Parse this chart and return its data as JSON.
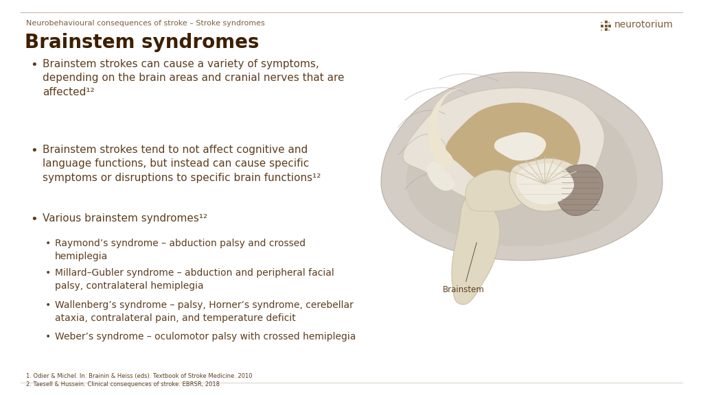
{
  "bg_color": "#ffffff",
  "subtitle": "Neurobehavioural consequences of stroke – Stroke syndromes",
  "title": "Brainstem syndromes",
  "subtitle_color": "#7b5c3a",
  "title_color": "#3d1f00",
  "text_color": "#5c3d1e",
  "bullet_points": [
    {
      "text": "Brainstem strokes can cause a variety of symptoms,\ndepending on the brain areas and cranial nerves that are\naffected¹²",
      "level": 1
    },
    {
      "text": "Brainstem strokes tend to not affect cognitive and\nlanguage functions, but instead can cause specific\nsymptoms or disruptions to specific brain functions¹²",
      "level": 1
    },
    {
      "text": "Various brainstem syndromes¹²",
      "level": 1
    },
    {
      "text": "Raymond’s syndrome – abduction palsy and crossed\nhemiplegia",
      "level": 2
    },
    {
      "text": "Millard–Gubler syndrome – abduction and peripheral facial\npalsy, contralateral hemiplegia",
      "level": 2
    },
    {
      "text": "Wallenberg’s syndrome – palsy, Horner’s syndrome, cerebellar\nataxia, contralateral pain, and temperature deficit",
      "level": 2
    },
    {
      "text": "Weber’s syndrome – oculomotor palsy with crossed hemiplegia",
      "level": 2
    }
  ],
  "footnotes": [
    "1. Odier & Michel. In: Brainin & Heiss (eds). Textbook of Stroke Medicine. 2010",
    "2. Taesell & Hussein. Clinical consequences of stroke. EBRSR, 2018"
  ],
  "neurotorium_color": "#7b5c3a",
  "brainstem_label": "Brainstem",
  "border_color": "#c8b8a8"
}
